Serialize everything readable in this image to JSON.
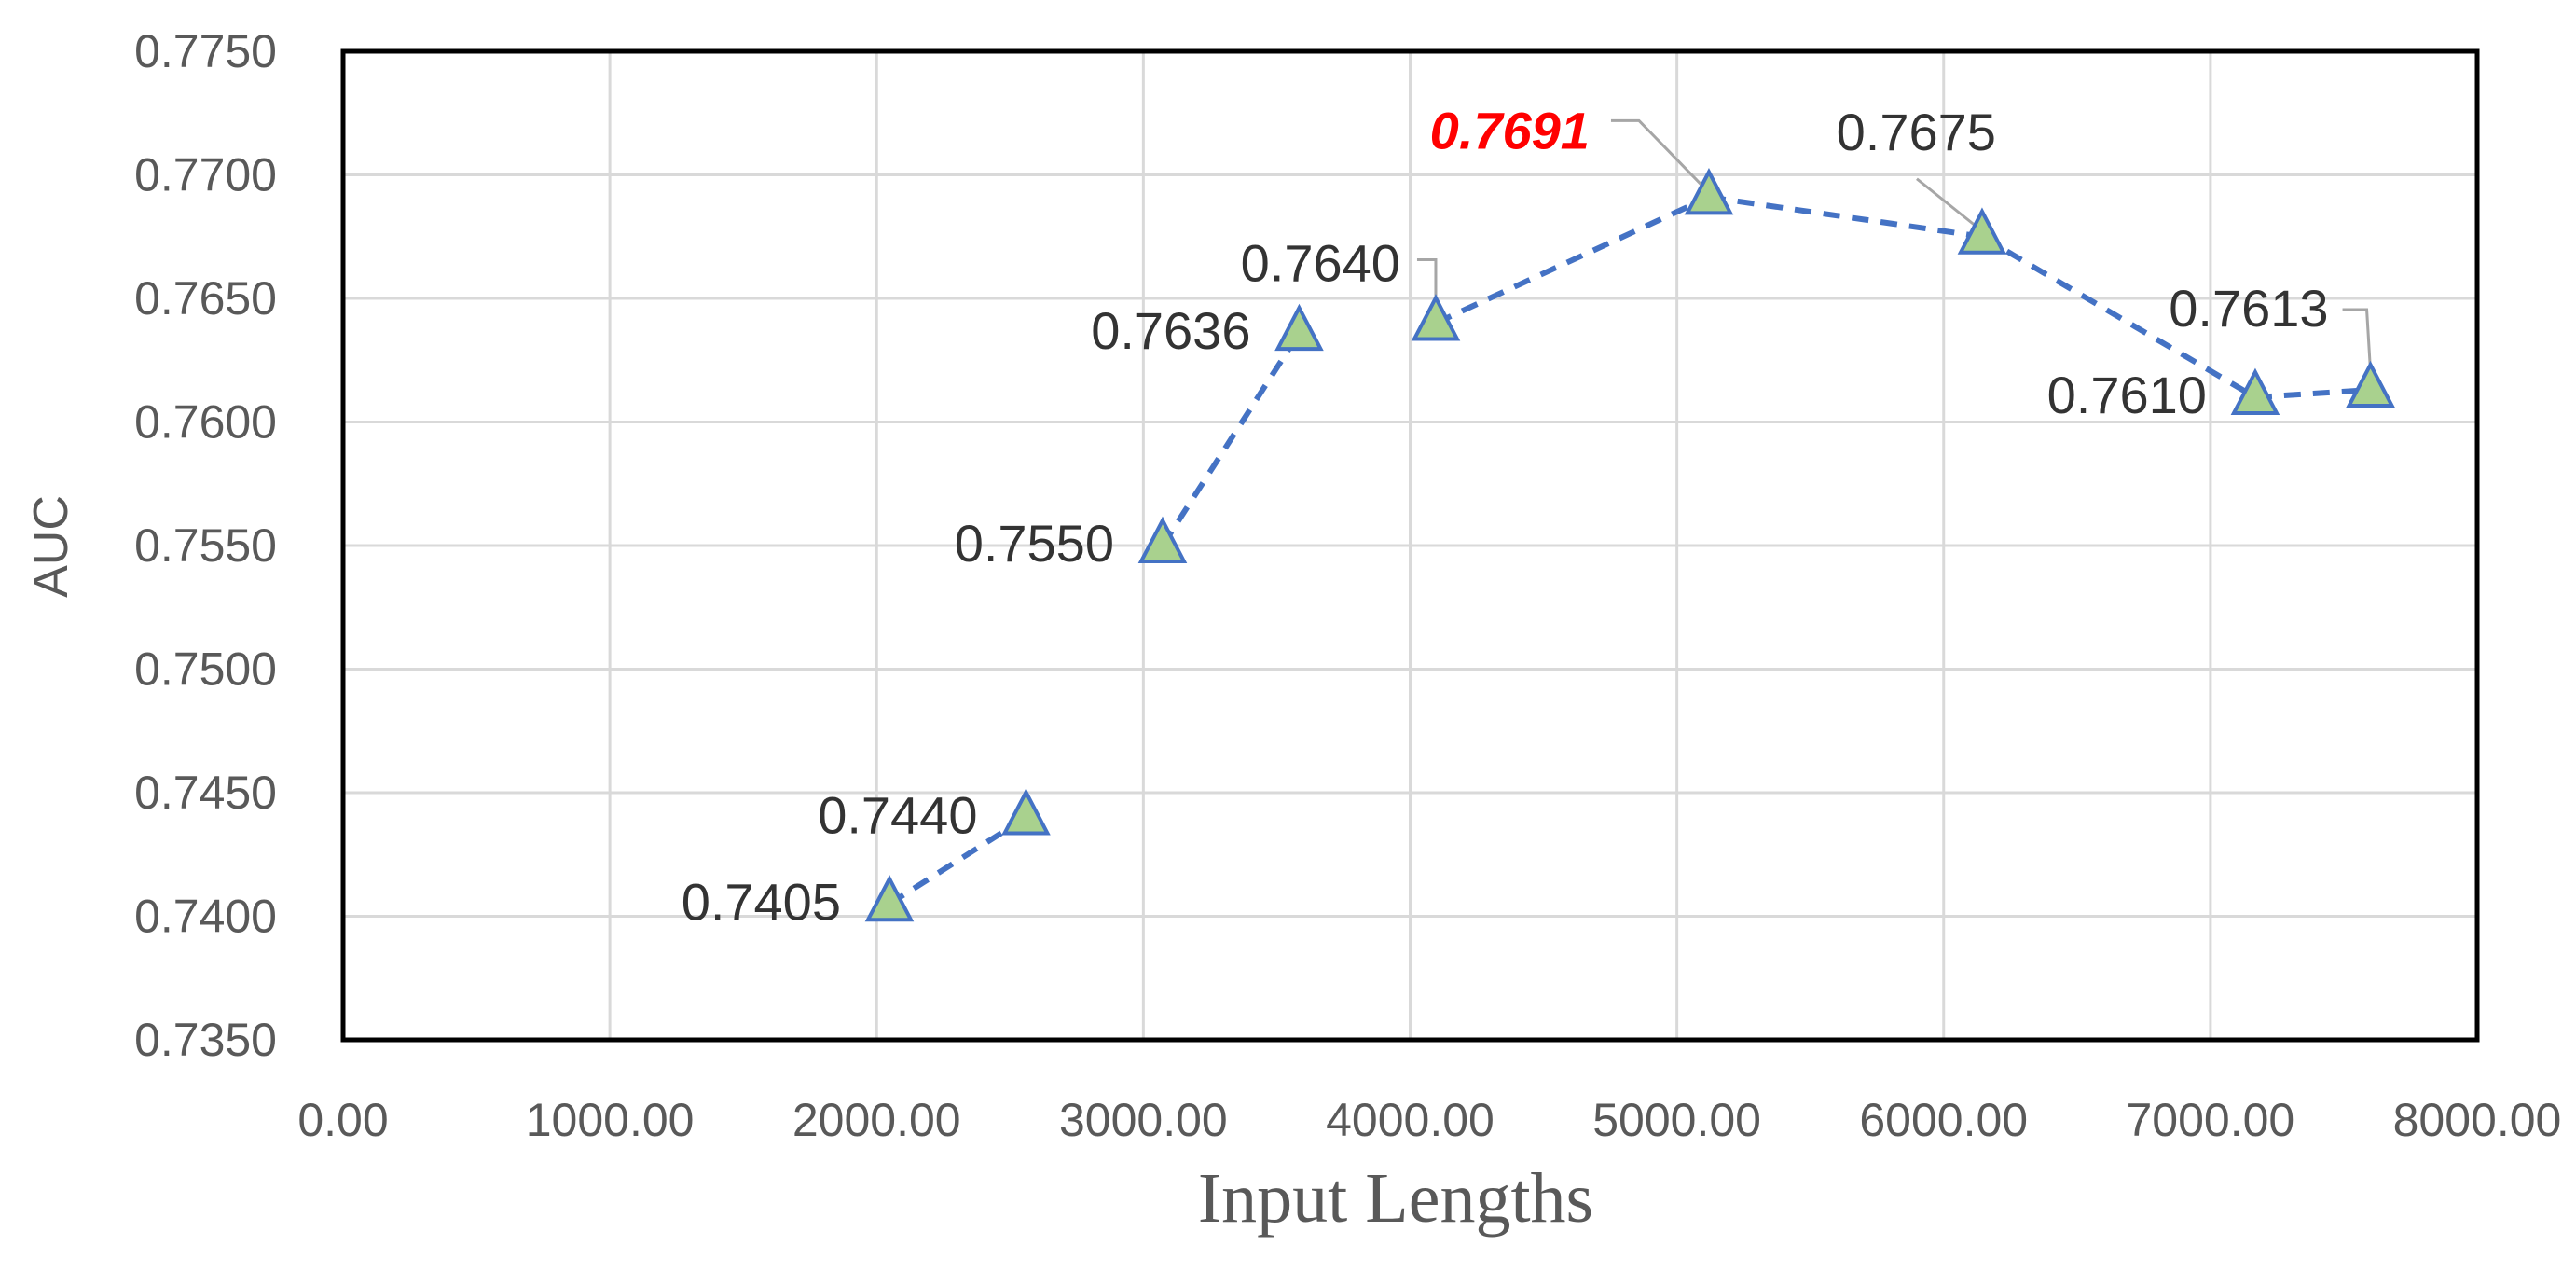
{
  "chart_data": {
    "type": "scatter",
    "xlabel": "Input Lengths",
    "ylabel": "AUC",
    "xlim": [
      0,
      8000
    ],
    "ylim": [
      0.735,
      0.775
    ],
    "x_ticks": [
      0,
      1000,
      2000,
      3000,
      4000,
      5000,
      6000,
      7000,
      8000
    ],
    "x_tick_labels": [
      "0.00",
      "1000.00",
      "2000.00",
      "3000.00",
      "4000.00",
      "5000.00",
      "6000.00",
      "7000.00",
      "8000.00"
    ],
    "y_ticks": [
      0.735,
      0.74,
      0.745,
      0.75,
      0.755,
      0.76,
      0.765,
      0.77,
      0.775
    ],
    "y_tick_labels": [
      "0.7350",
      "0.7400",
      "0.7450",
      "0.7500",
      "0.7550",
      "0.7600",
      "0.7650",
      "0.7700",
      "0.7750"
    ],
    "grid": true,
    "connector_line": "dashed",
    "colors": {
      "line": "#4472C4",
      "marker_fill": "#A9D18E",
      "marker_edge": "#4472C4",
      "grid": "#D9D9D9",
      "highlight_label": "#FF0000",
      "leader": "#A6A6A6"
    },
    "marker": "triangle",
    "points": [
      {
        "x": 2048,
        "y": 0.7405,
        "label": "0.7405",
        "highlight": false
      },
      {
        "x": 2560,
        "y": 0.744,
        "label": "0.7440",
        "highlight": false
      },
      {
        "x": 3072,
        "y": 0.755,
        "label": "0.7550",
        "highlight": false
      },
      {
        "x": 3584,
        "y": 0.7636,
        "label": "0.7636",
        "highlight": false
      },
      {
        "x": 4096,
        "y": 0.764,
        "label": "0.7640",
        "highlight": false
      },
      {
        "x": 5120,
        "y": 0.7691,
        "label": "0.7691",
        "highlight": true
      },
      {
        "x": 6144,
        "y": 0.7675,
        "label": "0.7675",
        "highlight": false
      },
      {
        "x": 7168,
        "y": 0.761,
        "label": "0.7610",
        "highlight": false
      },
      {
        "x": 7600,
        "y": 0.7613,
        "label": "0.7613",
        "highlight": false
      }
    ],
    "segments": [
      [
        0,
        1
      ],
      [
        2,
        3
      ],
      [
        4,
        5
      ],
      [
        5,
        6
      ],
      [
        6,
        7
      ],
      [
        7,
        8
      ]
    ]
  }
}
